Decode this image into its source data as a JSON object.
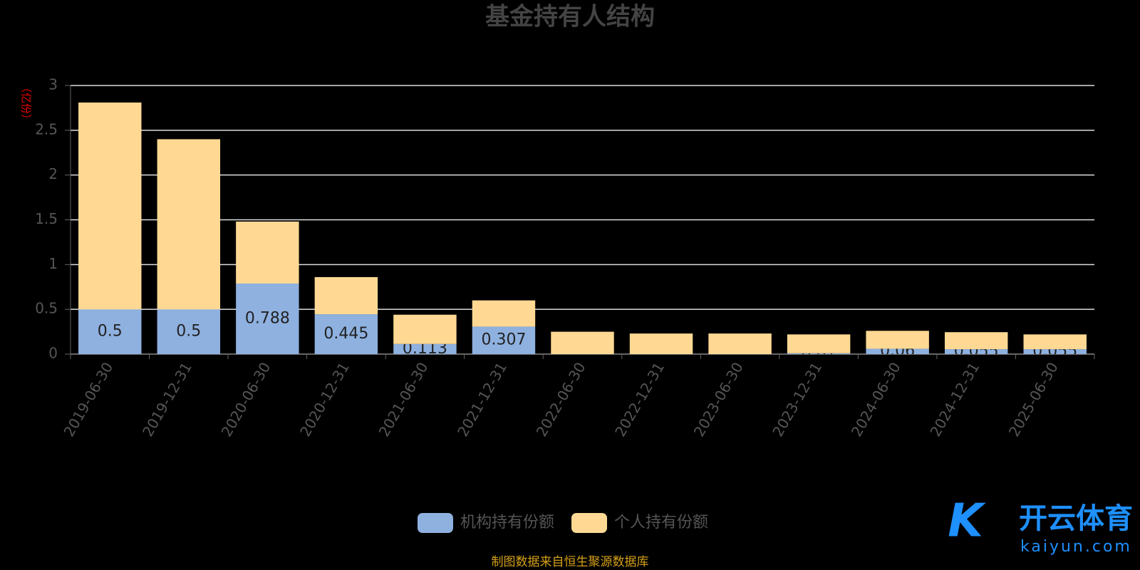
{
  "chart_data": {
    "type": "stacked_bar",
    "title": "基金持有人结构",
    "y_label": "（亿份）",
    "categories": [
      "2019-06-30",
      "2019-12-31",
      "2020-06-30",
      "2020-12-31",
      "2021-06-30",
      "2021-12-31",
      "2022-06-30",
      "2022-12-31",
      "2023-06-30",
      "2023-12-31",
      "2024-06-30",
      "2024-12-31",
      "2025-06-30"
    ],
    "series": [
      {
        "name": "机构持有份额",
        "color": "#8eb1e0",
        "values": [
          0.5,
          0.5,
          0.788,
          0.445,
          0.113,
          0.307,
          0,
          0,
          0,
          0.01,
          0.06,
          0.055,
          0.055
        ]
      },
      {
        "name": "个人持有份额",
        "color": "#ffd993",
        "values": [
          2.31,
          1.9,
          0.692,
          0.415,
          0.327,
          0.293,
          0.25,
          0.23,
          0.23,
          0.21,
          0.2,
          0.19,
          0.165
        ]
      }
    ],
    "ylim": [
      0,
      3
    ],
    "yticks": [
      0,
      0.5,
      1,
      1.5,
      2,
      2.5,
      3
    ],
    "grid": true,
    "source": "制图数据来自恒生聚源数据库",
    "watermark": {
      "brand": "开云体育",
      "site": "kaiyun.com"
    }
  }
}
